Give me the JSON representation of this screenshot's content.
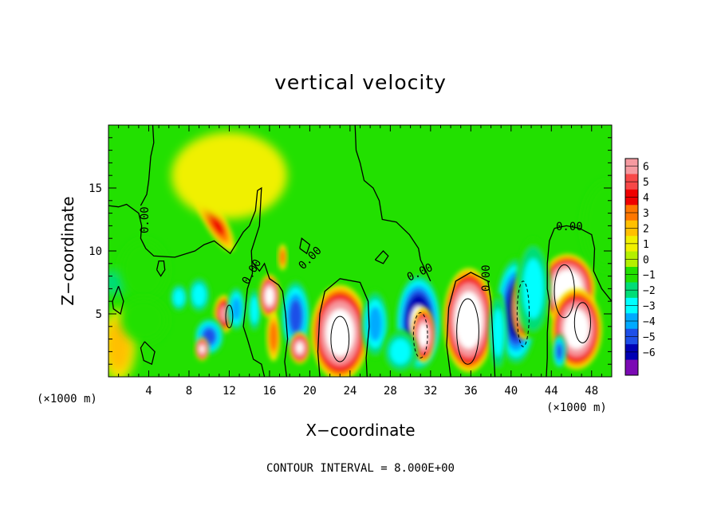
{
  "chart_data": {
    "type": "heatmap",
    "title": "vertical velocity",
    "xlabel": "X−coordinate",
    "ylabel": "Z−coordinate",
    "x_unit_left": "(×1000 m)",
    "x_unit_right": "(×1000 m)",
    "xlim": [
      0,
      50
    ],
    "ylim": [
      0,
      20
    ],
    "x_ticks": [
      4,
      8,
      12,
      16,
      20,
      24,
      28,
      32,
      36,
      40,
      44,
      48
    ],
    "y_ticks": [
      5,
      10,
      15
    ],
    "colorbar": {
      "levels": [
        6,
        5,
        4,
        3,
        2,
        1,
        0,
        -1,
        -2,
        -3,
        -4,
        -5,
        -6
      ],
      "labels": [
        "6",
        "5",
        "4",
        "3",
        "2",
        "1",
        "0",
        "−1",
        "−2",
        "−3",
        "−4",
        "−5",
        "−6"
      ],
      "colors": [
        "#f59aa0",
        "#f74848",
        "#f00000",
        "#ff7700",
        "#ffc000",
        "#f0f000",
        "#b4f000",
        "#22e000",
        "#00dd77",
        "#00ffff",
        "#00aaff",
        "#1d4fe8",
        "#0000b4",
        "#7b0ab4"
      ]
    },
    "contour_interval_text": "CONTOUR INTERVAL = 8.000E+00",
    "contour_labels": [
      "0.00",
      "0.00",
      "0.00",
      "0.00",
      "0.00",
      "0.00"
    ],
    "cells": [
      {
        "x": 10.5,
        "y": 12.5,
        "w": 0.9,
        "h": 2.5,
        "v": 3.5,
        "rot": -30
      },
      {
        "x": 9,
        "y": 6.5,
        "w": 1.0,
        "h": 1.3,
        "v": -3.2
      },
      {
        "x": 7,
        "y": 6.3,
        "w": 0.8,
        "h": 1.0,
        "v": -3.2
      },
      {
        "x": 11.5,
        "y": 5.0,
        "w": 0.9,
        "h": 1.3,
        "v": 5.5
      },
      {
        "x": 12.7,
        "y": 5.4,
        "w": 0.8,
        "h": 1.6,
        "v": -4.0
      },
      {
        "x": 10.0,
        "y": 3.2,
        "w": 1.3,
        "h": 1.3,
        "v": -5.0
      },
      {
        "x": 9.3,
        "y": 2.2,
        "w": 0.6,
        "h": 0.8,
        "v": 7.0
      },
      {
        "x": 14.5,
        "y": 5.3,
        "w": 0.6,
        "h": 1.6,
        "v": -3.0
      },
      {
        "x": 16.0,
        "y": 6.4,
        "w": 0.9,
        "h": 1.5,
        "v": 8.0
      },
      {
        "x": 16.4,
        "y": 3.2,
        "w": 0.6,
        "h": 1.7,
        "v": 3.0
      },
      {
        "x": 18.6,
        "y": 4.8,
        "w": 1.3,
        "h": 2.6,
        "v": -5.0
      },
      {
        "x": 19.0,
        "y": 2.3,
        "w": 0.9,
        "h": 1.1,
        "v": 7.0
      },
      {
        "x": 17.3,
        "y": 9.5,
        "w": 0.4,
        "h": 0.9,
        "v": 3.0
      },
      {
        "x": 23.0,
        "y": 3.5,
        "w": 2.5,
        "h": 3.3,
        "v": 9.0
      },
      {
        "x": 26.5,
        "y": 4.2,
        "w": 1.2,
        "h": 2.4,
        "v": -3.5
      },
      {
        "x": 30.8,
        "y": 4.3,
        "w": 2.0,
        "h": 3.4,
        "v": -7.0
      },
      {
        "x": 31.3,
        "y": 3.3,
        "w": 1.0,
        "h": 1.9,
        "v": 8.0
      },
      {
        "x": 35.8,
        "y": 4.5,
        "w": 2.2,
        "h": 3.6,
        "v": 10.0
      },
      {
        "x": 40.5,
        "y": 5.2,
        "w": 1.8,
        "h": 3.8,
        "v": -6.5
      },
      {
        "x": 41.3,
        "y": 5.5,
        "w": 1.1,
        "h": 2.2,
        "v": 8.0
      },
      {
        "x": 45.6,
        "y": 7.0,
        "w": 2.4,
        "h": 2.4,
        "v": 10.0
      },
      {
        "x": 46.5,
        "y": 3.8,
        "w": 2.2,
        "h": 2.8,
        "v": 9.0
      },
      {
        "x": 44.8,
        "y": 2.0,
        "w": 0.6,
        "h": 1.2,
        "v": -5.0
      },
      {
        "x": 42.2,
        "y": 7.0,
        "w": 1.5,
        "h": 3.5,
        "v": -3.0
      },
      {
        "x": 38.7,
        "y": 3.5,
        "w": 0.8,
        "h": 2.8,
        "v": -2.5
      },
      {
        "x": 29.0,
        "y": 2.0,
        "w": 1.5,
        "h": 1.5,
        "v": -2.5
      },
      {
        "x": 1.0,
        "y": 2.5,
        "w": 1.5,
        "h": 2.5,
        "v": 1.5
      },
      {
        "x": 0.5,
        "y": 7.5,
        "w": 1.5,
        "h": 1.0,
        "v": -1.8
      },
      {
        "x": 3.5,
        "y": 8.5,
        "w": 2.0,
        "h": 2.0,
        "v": -0.8
      },
      {
        "x": 3.5,
        "y": 4.5,
        "w": 2.0,
        "h": 1.5,
        "v": -1.0
      },
      {
        "x": 49.5,
        "y": 12.0,
        "w": 2.0,
        "h": 3.0,
        "v": -1.0
      },
      {
        "x": 12.0,
        "y": 16.0,
        "w": 5.0,
        "h": 3.0,
        "v": 0.6
      },
      {
        "x": 40.0,
        "y": 15.0,
        "w": 6.0,
        "h": 3.0,
        "v": 0.3
      }
    ]
  }
}
